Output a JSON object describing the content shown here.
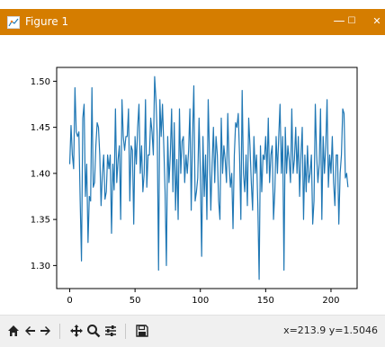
{
  "window": {
    "title": "Figure 1",
    "controls": {
      "minimize": "—",
      "maximize": "☐",
      "close": "✕"
    },
    "titlebar_color": "#d57d00"
  },
  "toolbar": {
    "buttons": [
      {
        "name": "home-icon"
      },
      {
        "name": "back-arrow-icon"
      },
      {
        "name": "forward-arrow-icon"
      },
      {
        "name": "pan-icon"
      },
      {
        "name": "zoom-icon"
      },
      {
        "name": "configure-subplots-icon"
      },
      {
        "name": "save-icon"
      }
    ],
    "coordinates": "x=213.9 y=1.5046"
  },
  "chart_data": {
    "type": "line",
    "series_color": "#1f77b4",
    "xlim": [
      -10,
      220
    ],
    "ylim": [
      1.275,
      1.515
    ],
    "xticks": [
      0,
      50,
      100,
      150,
      200
    ],
    "yticks": [
      1.3,
      1.35,
      1.4,
      1.45,
      1.5
    ],
    "xtick_labels": [
      "0",
      "50",
      "100",
      "150",
      "200"
    ],
    "ytick_labels": [
      "1.30",
      "1.35",
      "1.40",
      "1.45",
      "1.50"
    ],
    "grid": false,
    "x_start": 0,
    "x_step": 1,
    "values": [
      1.41,
      1.452,
      1.42,
      1.405,
      1.493,
      1.445,
      1.44,
      1.445,
      1.37,
      1.305,
      1.46,
      1.475,
      1.375,
      1.41,
      1.325,
      1.375,
      1.37,
      1.493,
      1.385,
      1.39,
      1.43,
      1.455,
      1.45,
      1.42,
      1.365,
      1.4,
      1.42,
      1.372,
      1.38,
      1.42,
      1.405,
      1.42,
      1.335,
      1.41,
      1.382,
      1.47,
      1.39,
      1.415,
      1.43,
      1.35,
      1.48,
      1.44,
      1.425,
      1.44,
      1.44,
      1.47,
      1.37,
      1.43,
      1.425,
      1.345,
      1.44,
      1.41,
      1.45,
      1.475,
      1.4,
      1.43,
      1.38,
      1.4,
      1.48,
      1.385,
      1.42,
      1.42,
      1.46,
      1.445,
      1.42,
      1.505,
      1.48,
      1.44,
      1.295,
      1.48,
      1.44,
      1.475,
      1.43,
      1.38,
      1.3,
      1.44,
      1.39,
      1.42,
      1.47,
      1.38,
      1.455,
      1.36,
      1.415,
      1.35,
      1.47,
      1.4,
      1.435,
      1.44,
      1.39,
      1.42,
      1.4,
      1.425,
      1.47,
      1.36,
      1.44,
      1.495,
      1.37,
      1.38,
      1.395,
      1.46,
      1.4,
      1.31,
      1.44,
      1.375,
      1.42,
      1.35,
      1.48,
      1.42,
      1.36,
      1.41,
      1.45,
      1.39,
      1.44,
      1.42,
      1.37,
      1.35,
      1.46,
      1.4,
      1.43,
      1.415,
      1.39,
      1.465,
      1.41,
      1.385,
      1.4,
      1.34,
      1.42,
      1.455,
      1.45,
      1.465,
      1.42,
      1.35,
      1.49,
      1.4,
      1.38,
      1.42,
      1.365,
      1.46,
      1.43,
      1.39,
      1.36,
      1.44,
      1.4,
      1.42,
      1.365,
      1.285,
      1.43,
      1.38,
      1.42,
      1.415,
      1.44,
      1.4,
      1.46,
      1.39,
      1.42,
      1.43,
      1.35,
      1.38,
      1.44,
      1.4,
      1.44,
      1.475,
      1.4,
      1.44,
      1.295,
      1.45,
      1.4,
      1.43,
      1.415,
      1.39,
      1.47,
      1.4,
      1.415,
      1.45,
      1.4,
      1.44,
      1.375,
      1.42,
      1.45,
      1.35,
      1.42,
      1.38,
      1.43,
      1.39,
      1.4,
      1.42,
      1.345,
      1.37,
      1.475,
      1.42,
      1.39,
      1.41,
      1.47,
      1.35,
      1.44,
      1.4,
      1.43,
      1.48,
      1.385,
      1.42,
      1.4,
      1.44,
      1.39,
      1.365,
      1.42,
      1.42,
      1.345,
      1.4,
      1.42,
      1.47,
      1.465,
      1.395,
      1.4,
      1.385
    ]
  }
}
